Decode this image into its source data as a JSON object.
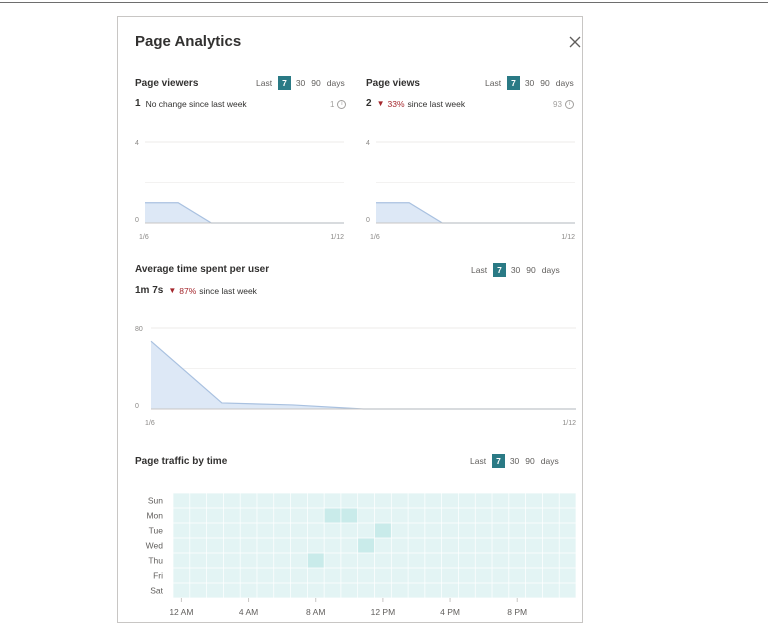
{
  "panel": {
    "title": "Page Analytics"
  },
  "range_labels": {
    "prefix": "Last",
    "options": [
      "7",
      "30",
      "90"
    ],
    "selected": "7",
    "suffix": "days"
  },
  "viewers": {
    "title": "Page viewers",
    "count": "1",
    "change_text": "No change since last week",
    "total": "1",
    "y_max": "4",
    "y_min": "0",
    "x_start": "1/6",
    "x_end": "1/12"
  },
  "views": {
    "title": "Page views",
    "count": "2",
    "change_pct": "33%",
    "change_text": "since last week",
    "total": "93",
    "y_max": "4",
    "y_min": "0",
    "x_start": "1/6",
    "x_end": "1/12"
  },
  "avgtime": {
    "title": "Average time spent per user",
    "value": "1m 7s",
    "change_pct": "87%",
    "change_text": "since last week",
    "y_max": "80",
    "y_min": "0",
    "x_start": "1/6",
    "x_end": "1/12"
  },
  "traffic": {
    "title": "Page traffic by time",
    "days": [
      "Sun",
      "Mon",
      "Tue",
      "Wed",
      "Thu",
      "Fri",
      "Sat"
    ],
    "hours": [
      "12 AM",
      "4 AM",
      "8 AM",
      "12 PM",
      "4 PM",
      "8 PM"
    ]
  },
  "colors": {
    "accent": "#2a7a85",
    "area_fill": "#dde8f6",
    "area_line": "#a9c1e0",
    "down": "#a4262c",
    "heat_cell": "#e3f4f4",
    "heat_hot": "#c9ebea"
  },
  "chart_data": [
    {
      "type": "area",
      "title": "Page viewers",
      "x": [
        "1/6",
        "1/7",
        "1/8",
        "1/9",
        "1/10",
        "1/11",
        "1/12"
      ],
      "values": [
        1,
        1,
        0,
        0,
        0,
        0,
        0
      ],
      "ylim": [
        0,
        4
      ]
    },
    {
      "type": "area",
      "title": "Page views",
      "x": [
        "1/6",
        "1/7",
        "1/8",
        "1/9",
        "1/10",
        "1/11",
        "1/12"
      ],
      "values": [
        1,
        1,
        0,
        0,
        0,
        0,
        0
      ],
      "ylim": [
        0,
        4
      ]
    },
    {
      "type": "area",
      "title": "Average time spent per user",
      "x": [
        "1/6",
        "1/7",
        "1/8",
        "1/9",
        "1/10",
        "1/11",
        "1/12"
      ],
      "values": [
        67,
        6,
        4,
        0,
        0,
        0,
        0
      ],
      "ylim": [
        0,
        80
      ]
    },
    {
      "type": "heatmap",
      "title": "Page traffic by time",
      "rows": [
        "Sun",
        "Mon",
        "Tue",
        "Wed",
        "Thu",
        "Fri",
        "Sat"
      ],
      "hot_cells": [
        {
          "day": "Mon",
          "hour": 9
        },
        {
          "day": "Mon",
          "hour": 10
        },
        {
          "day": "Tue",
          "hour": 12
        },
        {
          "day": "Wed",
          "hour": 11
        },
        {
          "day": "Thu",
          "hour": 8
        }
      ]
    }
  ]
}
